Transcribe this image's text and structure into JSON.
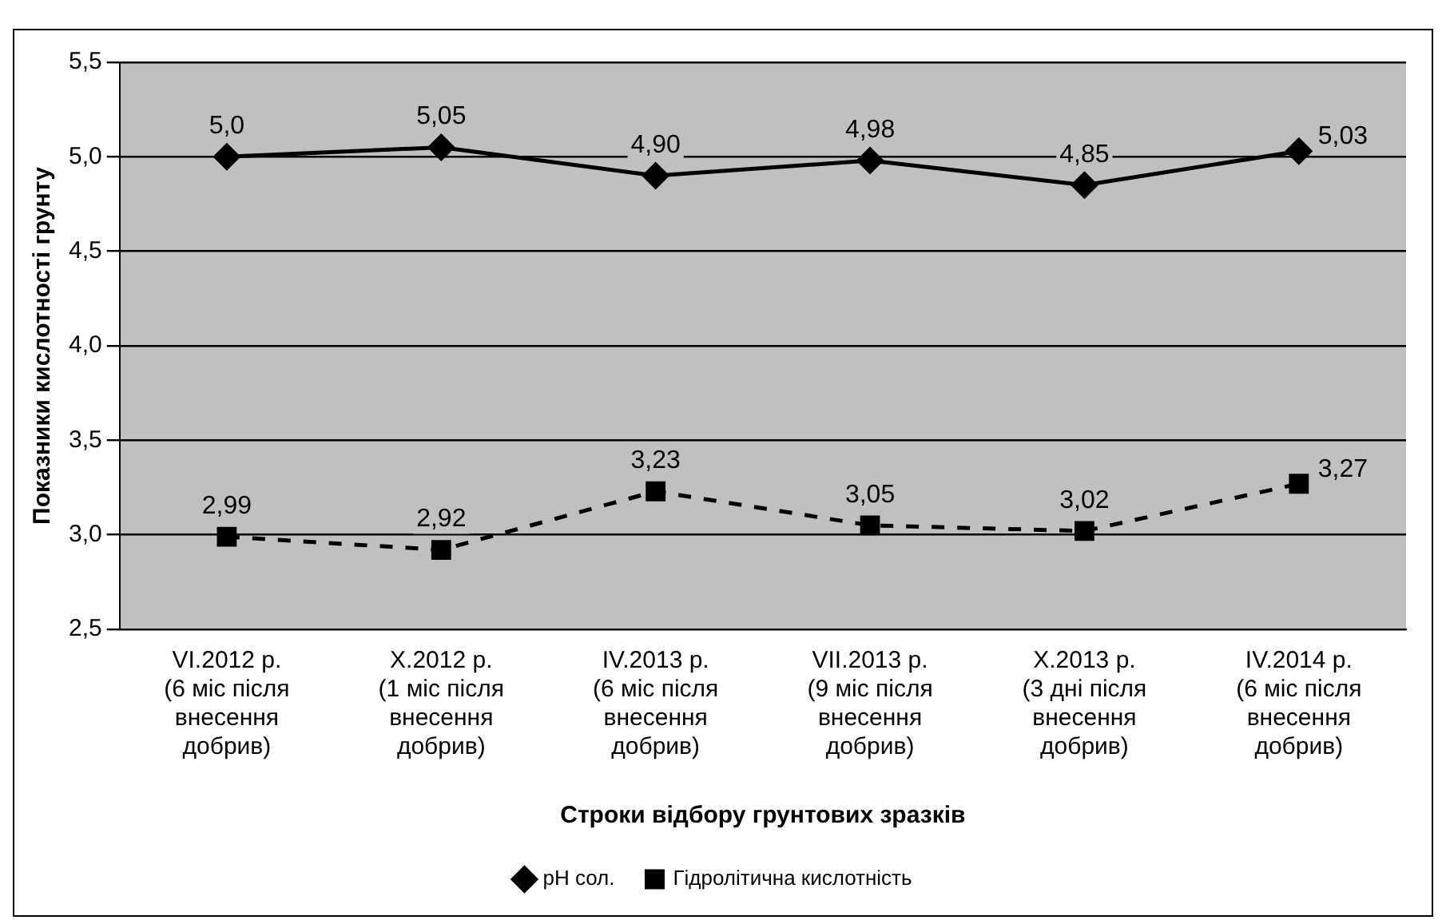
{
  "chart_data": {
    "type": "line",
    "xlabel": "Строки відбору грунтових зразків",
    "ylabel": "Показники кислотності грунту",
    "categories": [
      "VI.2012 р.\n(6 міс після\nвнесення\nдобрив)",
      "X.2012 р.\n(1 міс після\nвнесення\nдобрив)",
      "IV.2013 р.\n(6 міс після\nвнесення\nдобрив)",
      "VII.2013 р.\n(9 міс після\nвнесення\nдобрив)",
      "X.2013 р.\n(3 дні після\nвнесення\nдобрив)",
      "IV.2014 р.\n(6 міс після\nвнесення\nдобрив)"
    ],
    "series": [
      {
        "name": "pH сол.",
        "color": "#000000",
        "marker": "diamond",
        "line_style": "solid",
        "values": [
          5.0,
          5.05,
          4.9,
          4.98,
          4.85,
          5.03
        ],
        "value_labels": [
          "5,0",
          "5,05",
          "4,90",
          "4,98",
          "4,85",
          "5,03"
        ]
      },
      {
        "name": "Гідролітична кислотність",
        "color": "#000000",
        "marker": "square",
        "line_style": "dashed",
        "values": [
          2.99,
          2.92,
          3.23,
          3.05,
          3.02,
          3.27
        ],
        "value_labels": [
          "2,99",
          "2,92",
          "3,23",
          "3,05",
          "3,02",
          "3,27"
        ]
      }
    ],
    "ylim": [
      2.5,
      5.5
    ],
    "yticks": [
      {
        "value": 2.5,
        "label": "2,5"
      },
      {
        "value": 3.0,
        "label": "3,0"
      },
      {
        "value": 3.5,
        "label": "3,5"
      },
      {
        "value": 4.0,
        "label": "4,0"
      },
      {
        "value": 4.5,
        "label": "4,5"
      },
      {
        "value": 5.0,
        "label": "5,0"
      },
      {
        "value": 5.5,
        "label": "5,5"
      }
    ],
    "grid": "y",
    "legend": "bottom"
  }
}
